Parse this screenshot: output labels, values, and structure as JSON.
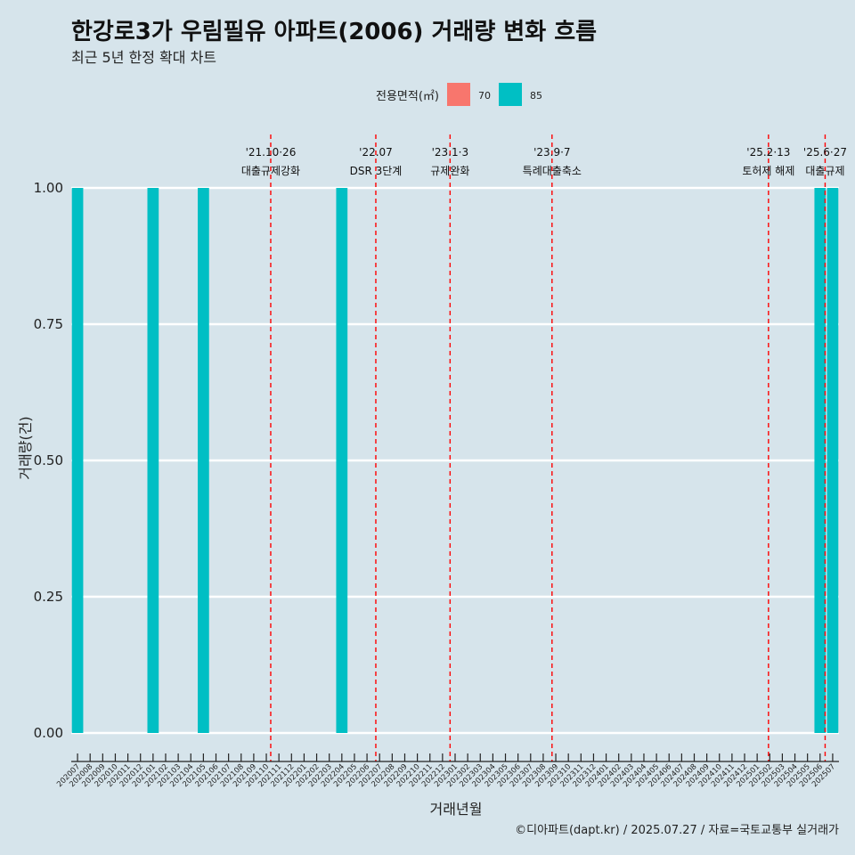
{
  "chart_data": {
    "type": "bar",
    "title": "한강로3가 우림필유 아파트(2006) 거래량 변화 흐름",
    "subtitle": "최근 5년 한정 확대 차트",
    "xlabel": "거래년월",
    "ylabel": "거래량(건)",
    "ylim": [
      0,
      1
    ],
    "y_ticks": [
      "0.00",
      "0.25",
      "0.50",
      "0.75",
      "1.00"
    ],
    "grid": true,
    "legend": {
      "title": "전용면적(㎡)",
      "position": "top",
      "entries": [
        {
          "name": "70",
          "color": "#f8766d"
        },
        {
          "name": "85",
          "color": "#00bfc4"
        }
      ]
    },
    "categories": [
      "202007",
      "202008",
      "202009",
      "202010",
      "202011",
      "202012",
      "202101",
      "202102",
      "202103",
      "202104",
      "202105",
      "202106",
      "202107",
      "202108",
      "202109",
      "202110",
      "202111",
      "202112",
      "202201",
      "202202",
      "202203",
      "202204",
      "202205",
      "202206",
      "202207",
      "202208",
      "202209",
      "202210",
      "202211",
      "202212",
      "202301",
      "202302",
      "202303",
      "202304",
      "202305",
      "202306",
      "202307",
      "202308",
      "202309",
      "202310",
      "202311",
      "202312",
      "202401",
      "202402",
      "202403",
      "202404",
      "202405",
      "202406",
      "202407",
      "202408",
      "202409",
      "202410",
      "202411",
      "202412",
      "202501",
      "202502",
      "202503",
      "202504",
      "202505",
      "202506",
      "202507"
    ],
    "bars": [
      {
        "month": "202007",
        "series": "85",
        "value": 1
      },
      {
        "month": "202101",
        "series": "85",
        "value": 1
      },
      {
        "month": "202105",
        "series": "85",
        "value": 1
      },
      {
        "month": "202204",
        "series": "85",
        "value": 1
      },
      {
        "month": "202506",
        "series": "85",
        "value": 1
      },
      {
        "month": "202507",
        "series": "85",
        "value": 1
      }
    ],
    "annotations": [
      {
        "month": "202110",
        "offset": 0.85,
        "date": "'21.10·26",
        "text": "대출규제강화"
      },
      {
        "month": "202207",
        "offset": 0.2,
        "date": "'22.07",
        "text": "DSR 3단계"
      },
      {
        "month": "202301",
        "offset": 0.1,
        "date": "'23.1·3",
        "text": "규제완화"
      },
      {
        "month": "202309",
        "offset": 0.2,
        "date": "'23.9·7",
        "text": "특례대출축소"
      },
      {
        "month": "202502",
        "offset": 0.4,
        "date": "'25.2·13",
        "text": "토허제 해제"
      },
      {
        "month": "202506",
        "offset": 0.9,
        "date": "'25.6·27",
        "text": "대출규제"
      }
    ],
    "caption": "©디아파트(dapt.kr) / 2025.07.27 / 자료=국토교통부 실거래가"
  }
}
